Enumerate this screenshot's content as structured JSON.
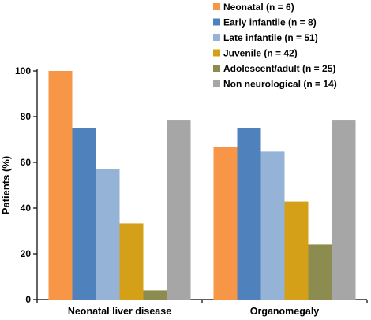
{
  "chart_data": {
    "type": "bar",
    "title": "",
    "xlabel": "",
    "ylabel": "Patients (%)",
    "ylim": [
      0,
      100
    ],
    "yticks": [
      0,
      20,
      40,
      60,
      80,
      100
    ],
    "grid": false,
    "legend_position": "top-right",
    "categories": [
      "Neonatal liver disease",
      "Organomegaly"
    ],
    "series": [
      {
        "name": "Neonatal (n = 6)",
        "color": "#f79646",
        "values": [
          100,
          66.7
        ]
      },
      {
        "name": "Early infantile (n = 8)",
        "color": "#4f81bd",
        "values": [
          75,
          75
        ]
      },
      {
        "name": "Late infantile (n = 51)",
        "color": "#95b3d7",
        "values": [
          56.9,
          64.7
        ]
      },
      {
        "name": "Juvenile (n = 42)",
        "color": "#d4a017",
        "values": [
          33.3,
          42.9
        ]
      },
      {
        "name": "Adolescent/adult (n = 25)",
        "color": "#8c8c50",
        "values": [
          4,
          24
        ]
      },
      {
        "name": "Non neurological (n = 14)",
        "color": "#a6a6a6",
        "values": [
          78.6,
          78.6
        ]
      }
    ]
  }
}
